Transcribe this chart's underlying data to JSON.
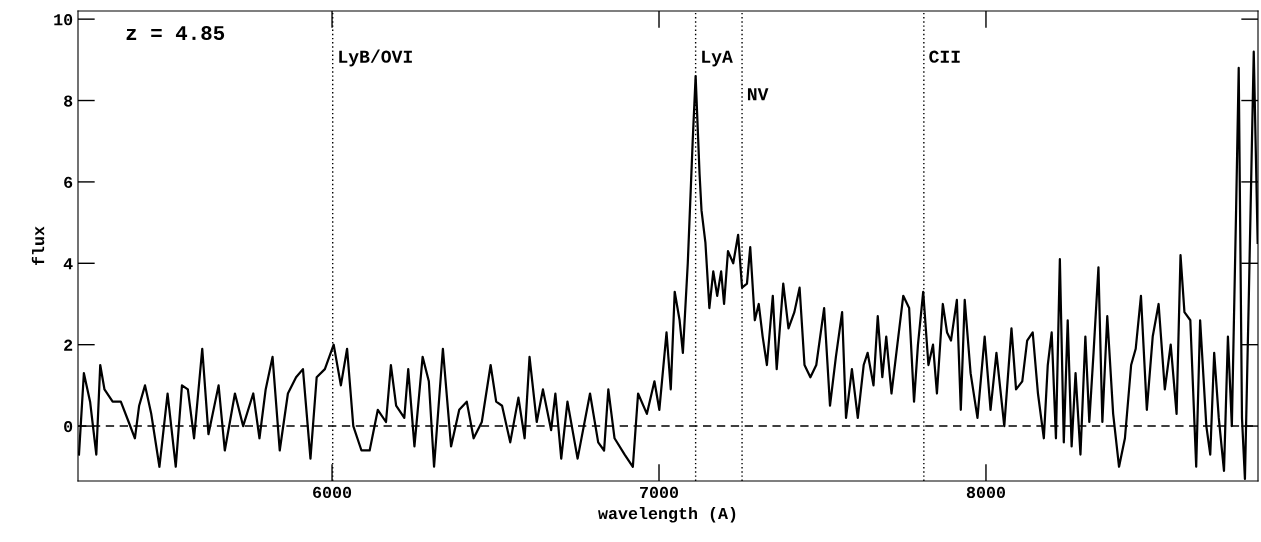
{
  "chart_data": {
    "type": "line",
    "xlabel": "wavelength (A)",
    "ylabel": "flux",
    "annotations": [
      "z = 4.85"
    ],
    "xlim": [
      5223,
      8832
    ],
    "ylim": [
      -1.35,
      10.2
    ],
    "xticks": [
      6000,
      7000,
      8000
    ],
    "yticks": [
      0,
      2,
      4,
      6,
      8,
      10
    ],
    "grid": false,
    "legend": false,
    "marker": "none",
    "line_style": "solid",
    "ref_lines": [
      {
        "axis": "x",
        "value": 6002,
        "label": "LyB/OVI",
        "color": "#000000",
        "line_style": "dotted"
      },
      {
        "axis": "x",
        "value": 7112,
        "label": "LyA",
        "color": "#000000",
        "line_style": "dotted"
      },
      {
        "axis": "x",
        "value": 7254,
        "label": "NV",
        "color": "#000000",
        "line_style": "dotted"
      },
      {
        "axis": "x",
        "value": 7810,
        "label": "CII",
        "color": "#000000",
        "line_style": "dotted"
      },
      {
        "axis": "y",
        "value": 0,
        "color": "#000000",
        "line_style": "dashed"
      }
    ],
    "series": [
      {
        "color": "#000000",
        "x": [
          5226,
          5241,
          5260,
          5279,
          5291,
          5304,
          5329,
          5354,
          5378,
          5397,
          5410,
          5428,
          5447,
          5472,
          5497,
          5522,
          5541,
          5559,
          5578,
          5603,
          5622,
          5653,
          5672,
          5703,
          5728,
          5759,
          5778,
          5797,
          5818,
          5840,
          5865,
          5890,
          5911,
          5934,
          5953,
          5978,
          6005,
          6027,
          6046,
          6065,
          6090,
          6115,
          6140,
          6165,
          6180,
          6196,
          6221,
          6233,
          6252,
          6277,
          6296,
          6312,
          6339,
          6364,
          6389,
          6412,
          6433,
          6458,
          6485,
          6502,
          6520,
          6545,
          6570,
          6589,
          6604,
          6626,
          6645,
          6670,
          6683,
          6701,
          6720,
          6751,
          6789,
          6814,
          6832,
          6845,
          6864,
          6895,
          6920,
          6936,
          6963,
          6986,
          7001,
          7023,
          7036,
          7048,
          7063,
          7073,
          7088,
          7103,
          7112,
          7124,
          7130,
          7142,
          7154,
          7166,
          7178,
          7190,
          7199,
          7211,
          7227,
          7242,
          7254,
          7269,
          7279,
          7293,
          7305,
          7317,
          7330,
          7348,
          7360,
          7380,
          7396,
          7414,
          7430,
          7445,
          7463,
          7481,
          7505,
          7523,
          7541,
          7560,
          7572,
          7590,
          7608,
          7626,
          7638,
          7656,
          7669,
          7683,
          7695,
          7711,
          7729,
          7747,
          7765,
          7780,
          7792,
          7808,
          7824,
          7838,
          7850,
          7868,
          7881,
          7893,
          7911,
          7923,
          7935,
          7953,
          7974,
          7996,
          8014,
          8032,
          8056,
          8078,
          8092,
          8111,
          8126,
          8143,
          8159,
          8177,
          8189,
          8201,
          8214,
          8226,
          8238,
          8250,
          8262,
          8274,
          8289,
          8304,
          8316,
          8329,
          8344,
          8356,
          8371,
          8389,
          8407,
          8425,
          8444,
          8458,
          8474,
          8492,
          8510,
          8528,
          8547,
          8565,
          8583,
          8595,
          8607,
          8625,
          8643,
          8655,
          8674,
          8686,
          8698,
          8712,
          8728,
          8740,
          8752,
          8765,
          8773,
          8783,
          8792,
          8804,
          8819,
          8831
        ],
        "values": [
          -0.7,
          1.3,
          0.6,
          -0.7,
          1.5,
          0.9,
          0.6,
          0.6,
          0.1,
          -0.3,
          0.5,
          1.0,
          0.3,
          -1.0,
          0.8,
          -1.0,
          1.0,
          0.9,
          -0.3,
          1.9,
          -0.2,
          1.0,
          -0.6,
          0.8,
          0.0,
          0.8,
          -0.3,
          0.9,
          1.7,
          -0.6,
          0.8,
          1.2,
          1.4,
          -0.8,
          1.2,
          1.4,
          2.0,
          1.0,
          1.9,
          0.0,
          -0.6,
          -0.6,
          0.4,
          0.1,
          1.5,
          0.5,
          0.2,
          1.4,
          -0.5,
          1.7,
          1.1,
          -1.0,
          1.9,
          -0.5,
          0.4,
          0.6,
          -0.3,
          0.1,
          1.5,
          0.6,
          0.5,
          -0.4,
          0.7,
          -0.3,
          1.7,
          0.1,
          0.9,
          -0.1,
          0.8,
          -0.8,
          0.6,
          -0.8,
          0.8,
          -0.4,
          -0.6,
          0.9,
          -0.3,
          -0.7,
          -1.0,
          0.8,
          0.3,
          1.1,
          0.4,
          2.3,
          0.9,
          3.3,
          2.6,
          1.8,
          4.0,
          7.0,
          8.6,
          6.2,
          5.3,
          4.5,
          2.9,
          3.8,
          3.2,
          3.8,
          3.0,
          4.3,
          4.0,
          4.7,
          3.4,
          3.5,
          4.4,
          2.6,
          3.0,
          2.2,
          1.5,
          3.2,
          1.4,
          3.5,
          2.4,
          2.8,
          3.4,
          1.5,
          1.2,
          1.5,
          2.9,
          0.5,
          1.7,
          2.8,
          0.2,
          1.4,
          0.2,
          1.5,
          1.8,
          1.0,
          2.7,
          1.2,
          2.2,
          0.8,
          2.0,
          3.2,
          2.9,
          0.6,
          2.0,
          3.3,
          1.5,
          2.0,
          0.8,
          3.0,
          2.3,
          2.1,
          3.1,
          0.4,
          3.1,
          1.3,
          0.2,
          2.2,
          0.4,
          1.8,
          0.0,
          2.4,
          0.9,
          1.1,
          2.1,
          2.3,
          0.8,
          -0.3,
          1.5,
          2.3,
          -0.3,
          4.1,
          -0.4,
          2.6,
          -0.5,
          1.3,
          -0.7,
          2.2,
          0.1,
          1.8,
          3.9,
          0.1,
          2.7,
          0.3,
          -1.0,
          -0.3,
          1.5,
          1.9,
          3.2,
          0.4,
          2.2,
          3.0,
          0.9,
          2.0,
          0.3,
          4.2,
          2.8,
          2.6,
          -1.0,
          2.6,
          0.0,
          -0.7,
          1.8,
          0.2,
          -1.1,
          2.2,
          0.0,
          5.3,
          8.8,
          0.2,
          -1.3,
          3.2,
          9.2,
          4.5
        ]
      }
    ]
  }
}
